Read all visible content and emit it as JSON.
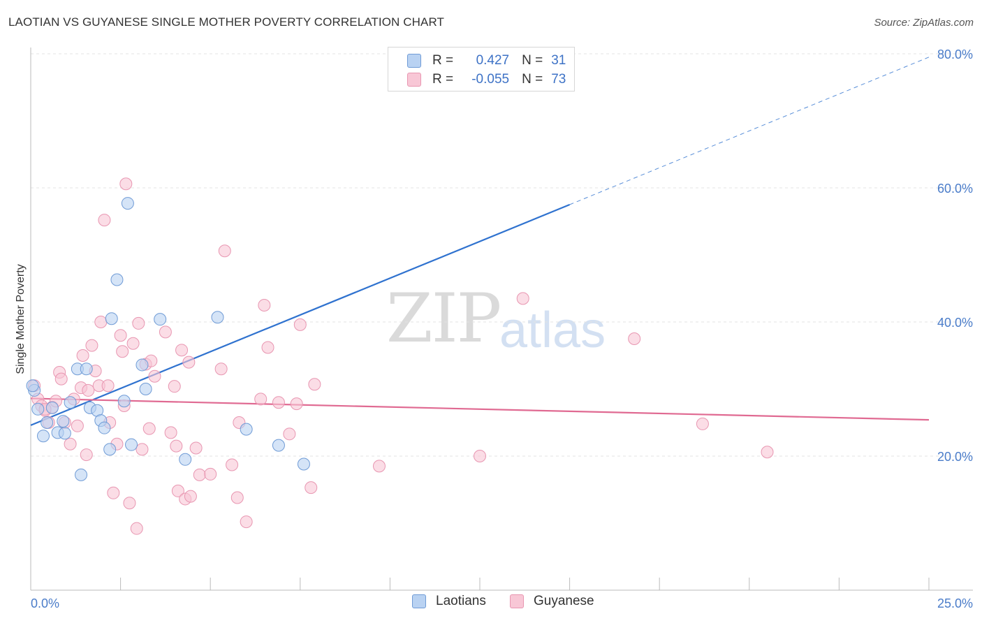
{
  "title": "LAOTIAN VS GUYANESE SINGLE MOTHER POVERTY CORRELATION CHART",
  "source": "Source: ZipAtlas.com",
  "watermark": {
    "zip": "ZIP",
    "atlas": "atlas"
  },
  "legend": {
    "rows": [
      {
        "r_label": "R =",
        "r_value": "0.427",
        "n_label": "N =",
        "n_value": "31"
      },
      {
        "r_label": "R =",
        "r_value": "-0.055",
        "n_label": "N =",
        "n_value": "73"
      }
    ]
  },
  "bottom_legend": [
    "Laotians",
    "Guyanese"
  ],
  "colors": {
    "laotian_fill": "#b9d2f2",
    "laotian_stroke": "#6f9bd6",
    "laotian_line": "#2f72cf",
    "guyanese_fill": "#f8c7d6",
    "guyanese_stroke": "#e896b1",
    "guyanese_line": "#e06a92",
    "tick_text": "#4a7cc9"
  },
  "chart_data": {
    "type": "scatter",
    "ylabel": "Single Mother Poverty",
    "xlim": [
      0,
      25
    ],
    "ylim": [
      0,
      80
    ],
    "x_tick_labels": [
      "0.0%",
      "25.0%"
    ],
    "y_ticks": [
      20,
      40,
      60,
      80
    ],
    "y_tick_labels": [
      "20.0%",
      "40.0%",
      "60.0%",
      "80.0%"
    ],
    "series": [
      {
        "name": "Laotians",
        "R": 0.427,
        "N": 31,
        "trend": {
          "x0": 0,
          "y0": 24.6,
          "x1": 15,
          "y1": 57.5,
          "dashed_to_x": 25,
          "dashed_to_y": 79.5
        },
        "points": [
          [
            0.1,
            29.8
          ],
          [
            0.2,
            27.0
          ],
          [
            0.35,
            23.0
          ],
          [
            0.45,
            25.0
          ],
          [
            0.6,
            27.2
          ],
          [
            0.75,
            23.5
          ],
          [
            0.9,
            25.2
          ],
          [
            0.95,
            23.4
          ],
          [
            1.1,
            28.0
          ],
          [
            1.3,
            33.0
          ],
          [
            1.4,
            17.2
          ],
          [
            1.55,
            33.0
          ],
          [
            1.65,
            27.2
          ],
          [
            1.85,
            26.8
          ],
          [
            1.95,
            25.3
          ],
          [
            2.05,
            24.2
          ],
          [
            2.2,
            21.0
          ],
          [
            2.25,
            40.5
          ],
          [
            2.4,
            46.3
          ],
          [
            2.6,
            28.2
          ],
          [
            2.7,
            57.7
          ],
          [
            2.8,
            21.7
          ],
          [
            3.1,
            33.6
          ],
          [
            3.2,
            30.0
          ],
          [
            3.6,
            40.4
          ],
          [
            4.3,
            19.5
          ],
          [
            5.2,
            40.7
          ],
          [
            6.0,
            24.0
          ],
          [
            6.9,
            21.6
          ],
          [
            7.6,
            18.8
          ],
          [
            0.05,
            30.5
          ]
        ]
      },
      {
        "name": "Guyanese",
        "R": -0.055,
        "N": 73,
        "trend": {
          "x0": 0,
          "y0": 28.6,
          "x1": 25,
          "y1": 25.4
        },
        "points": [
          [
            0.1,
            30.5
          ],
          [
            0.2,
            28.5
          ],
          [
            0.3,
            27.5
          ],
          [
            0.4,
            26.8
          ],
          [
            0.5,
            25.0
          ],
          [
            0.6,
            27.3
          ],
          [
            0.7,
            28.2
          ],
          [
            0.8,
            32.5
          ],
          [
            0.85,
            31.5
          ],
          [
            0.95,
            25.0
          ],
          [
            1.1,
            21.8
          ],
          [
            1.2,
            28.5
          ],
          [
            1.3,
            24.5
          ],
          [
            1.4,
            30.2
          ],
          [
            1.45,
            35.0
          ],
          [
            1.55,
            20.2
          ],
          [
            1.6,
            29.8
          ],
          [
            1.7,
            36.5
          ],
          [
            1.8,
            32.7
          ],
          [
            1.9,
            30.5
          ],
          [
            1.95,
            40.0
          ],
          [
            2.05,
            55.2
          ],
          [
            2.15,
            30.5
          ],
          [
            2.2,
            25.0
          ],
          [
            2.3,
            14.5
          ],
          [
            2.4,
            21.8
          ],
          [
            2.5,
            38.0
          ],
          [
            2.55,
            35.6
          ],
          [
            2.6,
            27.5
          ],
          [
            2.65,
            60.6
          ],
          [
            2.75,
            13.0
          ],
          [
            2.85,
            36.8
          ],
          [
            2.95,
            9.2
          ],
          [
            3.0,
            39.8
          ],
          [
            3.1,
            21.0
          ],
          [
            3.2,
            33.7
          ],
          [
            3.3,
            24.1
          ],
          [
            3.35,
            34.2
          ],
          [
            3.45,
            31.9
          ],
          [
            3.75,
            38.5
          ],
          [
            3.9,
            23.5
          ],
          [
            4.0,
            30.4
          ],
          [
            4.05,
            21.5
          ],
          [
            4.1,
            14.8
          ],
          [
            4.2,
            35.8
          ],
          [
            4.3,
            13.6
          ],
          [
            4.4,
            34.0
          ],
          [
            4.45,
            14.0
          ],
          [
            4.6,
            21.2
          ],
          [
            4.7,
            17.2
          ],
          [
            5.0,
            17.3
          ],
          [
            5.3,
            33.0
          ],
          [
            5.4,
            50.6
          ],
          [
            5.6,
            18.7
          ],
          [
            5.75,
            13.8
          ],
          [
            5.8,
            25.0
          ],
          [
            6.0,
            10.2
          ],
          [
            6.4,
            28.5
          ],
          [
            6.5,
            42.5
          ],
          [
            6.6,
            36.2
          ],
          [
            6.9,
            28.0
          ],
          [
            7.2,
            23.3
          ],
          [
            7.4,
            27.8
          ],
          [
            7.8,
            15.3
          ],
          [
            7.5,
            39.6
          ],
          [
            7.9,
            30.7
          ],
          [
            9.7,
            18.5
          ],
          [
            12.5,
            20.0
          ],
          [
            13.7,
            43.5
          ],
          [
            16.8,
            37.5
          ],
          [
            18.7,
            24.8
          ],
          [
            20.5,
            20.6
          ],
          [
            0.4,
            27.0
          ]
        ]
      }
    ]
  }
}
